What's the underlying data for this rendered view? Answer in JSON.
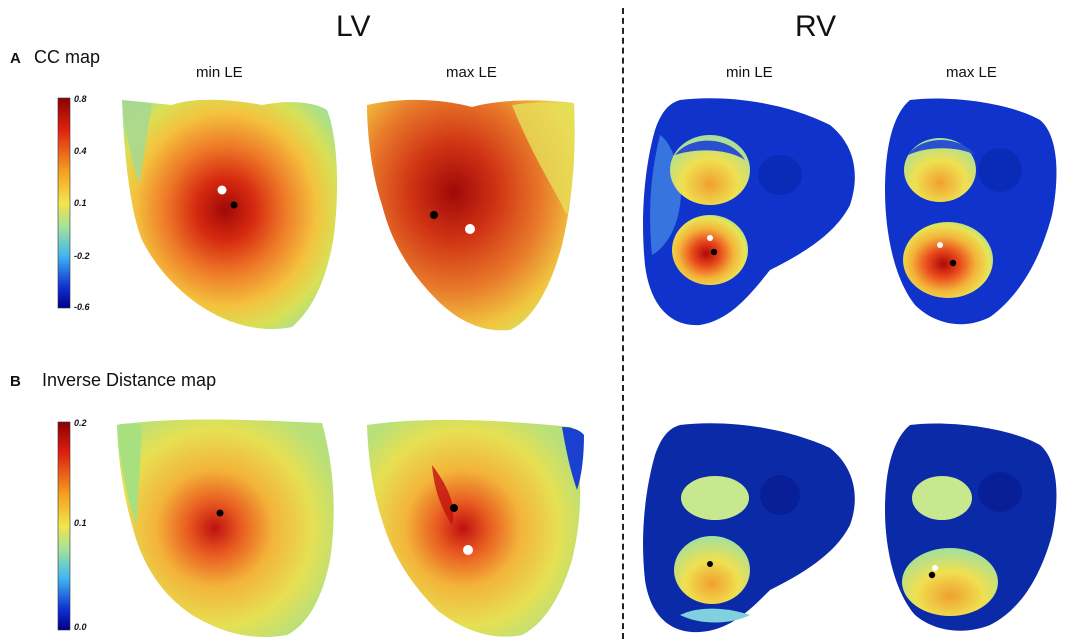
{
  "headers": {
    "lv": "LV",
    "rv": "RV"
  },
  "panels": {
    "a": {
      "letter": "A",
      "title": "CC map"
    },
    "b": {
      "letter": "B",
      "title": "Inverse Distance map"
    }
  },
  "columns": {
    "min": "min LE",
    "max": "max LE"
  },
  "colorbars": {
    "cc": {
      "ticks": [
        "0.8",
        "0.4",
        "0.1",
        "-0.2",
        "-0.6"
      ]
    },
    "inverse_distance": {
      "ticks": [
        "0.2",
        "0.1",
        "0.0"
      ]
    }
  },
  "colors": {
    "jet_high": "#8b0000",
    "jet_mid": "#f0e64a",
    "jet_low": "#00008b",
    "marker_black": "#000000",
    "marker_white": "#ffffff"
  }
}
